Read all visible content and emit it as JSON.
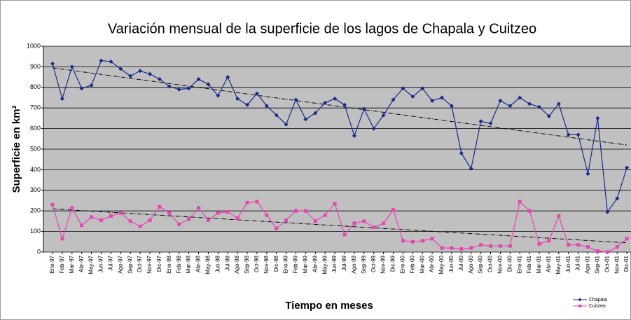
{
  "chart_data": {
    "type": "line",
    "title": "Variación mensual de la superficie de los lagos de Chapala y Cuitzeo",
    "x_label": "Tiempo en meses",
    "y_label": "Superficie en km²",
    "categories": [
      "Ene-97",
      "Feb-97",
      "Mar-97",
      "Abr-97",
      "May-97",
      "Jun-97",
      "Jul-97",
      "Ago-97",
      "Sep-97",
      "Oct-97",
      "Nov-97",
      "Dic-97",
      "Ene-98",
      "Feb-98",
      "Mar-98",
      "Abr-98",
      "May-98",
      "Jun-98",
      "Jul-98",
      "Ago-98",
      "Sep-98",
      "Oct-98",
      "Nov-98",
      "Dic-98",
      "Ene-99",
      "Feb-99",
      "Mar-99",
      "Abr-99",
      "May-99",
      "Jun-99",
      "Jul-99",
      "Ago-99",
      "Sep-99",
      "Oct-99",
      "Nov-99",
      "Dic-99",
      "Ene-00",
      "Feb-00",
      "Mar-00",
      "Abr-00",
      "May-00",
      "Jun-00",
      "Jul-00",
      "Ago-00",
      "Sep-00",
      "Oct-00",
      "Nov-00",
      "Dic-00",
      "Ene-01",
      "Feb-01",
      "Mar-01",
      "Abr-01",
      "May-01",
      "Jun-01",
      "Jul-01",
      "Ago-01",
      "Sep-01",
      "Oct-01",
      "Nov-01",
      "Dic-01"
    ],
    "series": [
      {
        "name": "Chapala",
        "color": "#1a2a8c",
        "marker": "diamond",
        "trend": [
          895,
          520
        ],
        "values": [
          915,
          745,
          900,
          795,
          810,
          930,
          925,
          890,
          855,
          880,
          865,
          840,
          805,
          790,
          795,
          840,
          815,
          760,
          850,
          745,
          715,
          770,
          710,
          665,
          620,
          740,
          645,
          675,
          725,
          745,
          715,
          565,
          695,
          600,
          665,
          740,
          795,
          755,
          795,
          735,
          750,
          710,
          480,
          405,
          635,
          625,
          735,
          710,
          750,
          720,
          705,
          660,
          720,
          570,
          570,
          380,
          650,
          195,
          260,
          410
        ]
      },
      {
        "name": "Cuitzeo",
        "color": "#e844b4",
        "marker": "square",
        "trend": [
          210,
          45
        ],
        "values": [
          230,
          65,
          215,
          130,
          170,
          155,
          175,
          190,
          150,
          125,
          155,
          220,
          190,
          135,
          160,
          215,
          155,
          190,
          195,
          165,
          240,
          245,
          180,
          115,
          155,
          200,
          200,
          150,
          180,
          235,
          85,
          140,
          150,
          120,
          140,
          205,
          55,
          50,
          55,
          65,
          20,
          20,
          15,
          20,
          35,
          30,
          30,
          30,
          245,
          200,
          40,
          55,
          175,
          35,
          35,
          25,
          5,
          0,
          25,
          65
        ]
      }
    ],
    "ylim": [
      0,
      1000
    ],
    "yticks": [
      0,
      100,
      200,
      300,
      400,
      500,
      600,
      700,
      800,
      900,
      1000
    ],
    "grid": true,
    "legend": "bottom-right"
  }
}
